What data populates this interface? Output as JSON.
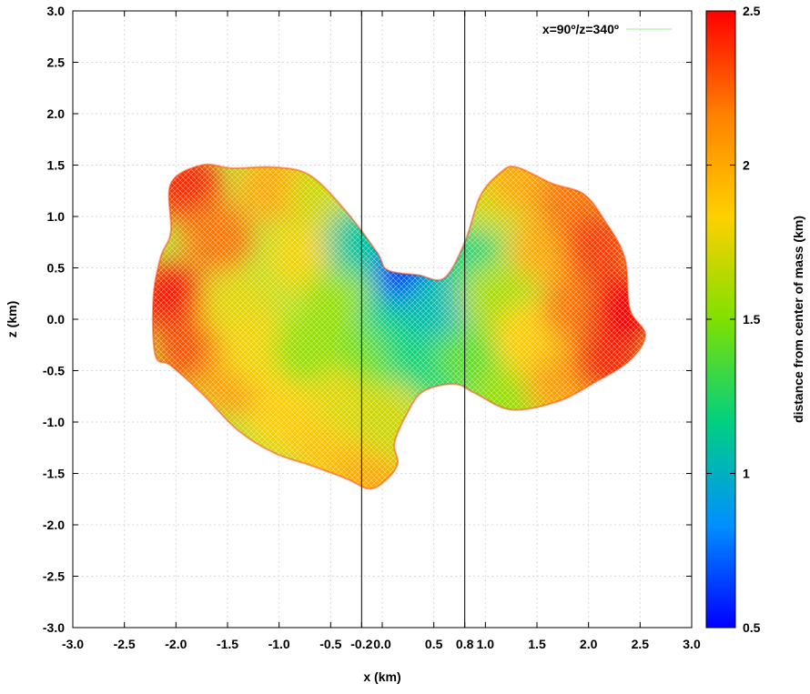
{
  "chart_data": {
    "type": "scatter",
    "xlabel": "x (km)",
    "ylabel": "z (km)",
    "xlim": [
      -3.0,
      3.0
    ],
    "ylim": [
      -3.0,
      3.0
    ],
    "xticks": [
      {
        "value": -3.0,
        "label": "-3.0"
      },
      {
        "value": -2.5,
        "label": "-2.5"
      },
      {
        "value": -2.0,
        "label": "-2.0"
      },
      {
        "value": -1.5,
        "label": "-1.5"
      },
      {
        "value": -1.0,
        "label": "-1.0"
      },
      {
        "value": -0.5,
        "label": "-0.5"
      },
      {
        "value": -0.2,
        "label": "-0.2"
      },
      {
        "value": 0.0,
        "label": "0.0"
      },
      {
        "value": 0.5,
        "label": "0.5"
      },
      {
        "value": 0.8,
        "label": "0.8"
      },
      {
        "value": 1.0,
        "label": "1.0"
      },
      {
        "value": 1.5,
        "label": "1.5"
      },
      {
        "value": 2.0,
        "label": "2.0"
      },
      {
        "value": 2.5,
        "label": "2.5"
      },
      {
        "value": 3.0,
        "label": "3.0"
      }
    ],
    "yticks": [
      {
        "value": 3.0,
        "label": "3.0"
      },
      {
        "value": 2.5,
        "label": "2.5"
      },
      {
        "value": 2.0,
        "label": "2.0"
      },
      {
        "value": 1.5,
        "label": "1.5"
      },
      {
        "value": 1.0,
        "label": "1.0"
      },
      {
        "value": 0.5,
        "label": "0.5"
      },
      {
        "value": 0.0,
        "label": "0.0"
      },
      {
        "value": -0.5,
        "label": "-0.5"
      },
      {
        "value": -1.0,
        "label": "-1.0"
      },
      {
        "value": -1.5,
        "label": "-1.5"
      },
      {
        "value": -2.0,
        "label": "-2.0"
      },
      {
        "value": -2.5,
        "label": "-2.5"
      },
      {
        "value": -3.0,
        "label": "-3.0"
      }
    ],
    "grid": true,
    "legend": {
      "label": "x=90º/z=340º",
      "placement": "top-right",
      "color": "#99ee99"
    },
    "vertical_lines": [
      -0.2,
      0.8
    ],
    "colorbar": {
      "label": "distance from center of mass (km)",
      "range": [
        0.5,
        2.5
      ],
      "ticks": [
        {
          "value": 2.5,
          "label": "2.5"
        },
        {
          "value": 2.0,
          "label": "2"
        },
        {
          "value": 1.5,
          "label": "1.5"
        },
        {
          "value": 1.0,
          "label": "1"
        },
        {
          "value": 0.5,
          "label": "0.5"
        }
      ],
      "colors": [
        "#0000ff",
        "#0090ff",
        "#00d080",
        "#80e000",
        "#ffd000",
        "#ff8000",
        "#ff0000"
      ]
    },
    "shape_outline": [
      [
        -2.05,
        1.32
      ],
      [
        -1.75,
        1.5
      ],
      [
        -1.45,
        1.47
      ],
      [
        -1.05,
        1.48
      ],
      [
        -0.7,
        1.4
      ],
      [
        -0.35,
        1.05
      ],
      [
        -0.05,
        0.65
      ],
      [
        0.05,
        0.48
      ],
      [
        0.35,
        0.43
      ],
      [
        0.6,
        0.4
      ],
      [
        0.8,
        0.75
      ],
      [
        0.95,
        1.2
      ],
      [
        1.15,
        1.43
      ],
      [
        1.3,
        1.48
      ],
      [
        1.65,
        1.32
      ],
      [
        1.95,
        1.22
      ],
      [
        2.15,
        0.97
      ],
      [
        2.35,
        0.6
      ],
      [
        2.4,
        0.1
      ],
      [
        2.55,
        -0.15
      ],
      [
        2.4,
        -0.4
      ],
      [
        2.05,
        -0.62
      ],
      [
        1.7,
        -0.8
      ],
      [
        1.25,
        -0.88
      ],
      [
        0.9,
        -0.72
      ],
      [
        0.7,
        -0.63
      ],
      [
        0.4,
        -0.7
      ],
      [
        0.25,
        -0.9
      ],
      [
        0.12,
        -1.2
      ],
      [
        0.15,
        -1.4
      ],
      [
        0.05,
        -1.55
      ],
      [
        -0.12,
        -1.65
      ],
      [
        -0.35,
        -1.55
      ],
      [
        -0.7,
        -1.42
      ],
      [
        -1.05,
        -1.3
      ],
      [
        -1.4,
        -1.08
      ],
      [
        -1.75,
        -0.72
      ],
      [
        -2.05,
        -0.45
      ],
      [
        -2.2,
        -0.35
      ],
      [
        -2.22,
        0.2
      ],
      [
        -2.15,
        0.6
      ],
      [
        -2.05,
        0.85
      ]
    ],
    "color_samples": [
      {
        "x": -2.05,
        "z": 0.2,
        "d": 2.45
      },
      {
        "x": -1.9,
        "z": 1.3,
        "d": 2.4
      },
      {
        "x": -1.85,
        "z": -0.3,
        "d": 2.3
      },
      {
        "x": -1.6,
        "z": 0.8,
        "d": 2.2
      },
      {
        "x": -1.45,
        "z": -0.6,
        "d": 2.05
      },
      {
        "x": -1.4,
        "z": 0.1,
        "d": 1.75
      },
      {
        "x": -1.2,
        "z": -0.3,
        "d": 1.8
      },
      {
        "x": -1.05,
        "z": 1.3,
        "d": 2.0
      },
      {
        "x": -0.95,
        "z": -0.95,
        "d": 1.85
      },
      {
        "x": -0.75,
        "z": 0.6,
        "d": 1.8
      },
      {
        "x": -0.7,
        "z": -0.3,
        "d": 1.55
      },
      {
        "x": -0.55,
        "z": 1.2,
        "d": 1.7
      },
      {
        "x": -0.5,
        "z": -1.3,
        "d": 1.9
      },
      {
        "x": -0.4,
        "z": 0.2,
        "d": 1.55
      },
      {
        "x": -0.35,
        "z": -0.8,
        "d": 1.75
      },
      {
        "x": -0.2,
        "z": 0.75,
        "d": 1.1
      },
      {
        "x": -0.1,
        "z": -1.55,
        "d": 2.0
      },
      {
        "x": -0.05,
        "z": -0.3,
        "d": 1.45
      },
      {
        "x": 0.05,
        "z": -1.0,
        "d": 1.7
      },
      {
        "x": 0.15,
        "z": 0.1,
        "d": 1.15
      },
      {
        "x": 0.3,
        "z": 0.45,
        "d": 0.55
      },
      {
        "x": 0.35,
        "z": -0.3,
        "d": 1.2
      },
      {
        "x": 0.55,
        "z": 0.1,
        "d": 1.05
      },
      {
        "x": 0.6,
        "z": -0.5,
        "d": 1.2
      },
      {
        "x": 0.8,
        "z": 0.7,
        "d": 1.2
      },
      {
        "x": 0.9,
        "z": -0.4,
        "d": 1.4
      },
      {
        "x": 1.0,
        "z": 1.2,
        "d": 1.7
      },
      {
        "x": 1.1,
        "z": 0.2,
        "d": 1.6
      },
      {
        "x": 1.2,
        "z": -0.8,
        "d": 1.55
      },
      {
        "x": 1.35,
        "z": 1.4,
        "d": 2.0
      },
      {
        "x": 1.45,
        "z": -0.2,
        "d": 1.85
      },
      {
        "x": 1.6,
        "z": 0.7,
        "d": 2.0
      },
      {
        "x": 1.75,
        "z": -0.65,
        "d": 2.05
      },
      {
        "x": 1.85,
        "z": 1.15,
        "d": 2.2
      },
      {
        "x": 1.9,
        "z": 0.1,
        "d": 2.2
      },
      {
        "x": 2.1,
        "z": 0.7,
        "d": 2.35
      },
      {
        "x": 2.2,
        "z": -0.4,
        "d": 2.4
      },
      {
        "x": 2.35,
        "z": 0.1,
        "d": 2.5
      }
    ]
  }
}
